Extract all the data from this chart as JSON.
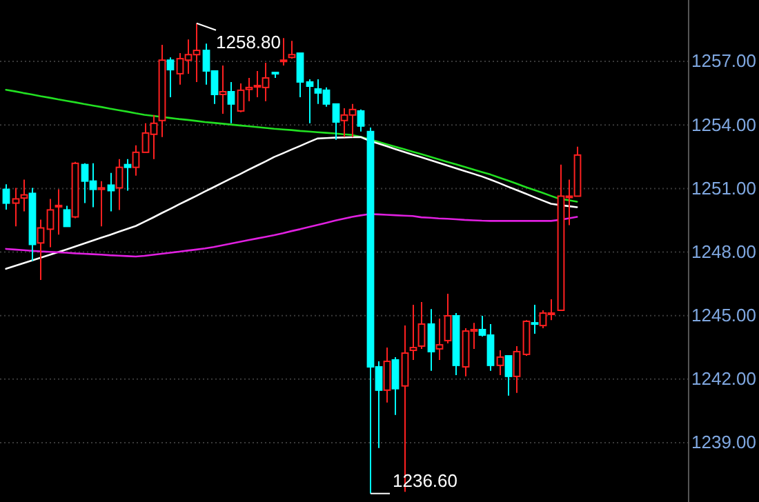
{
  "chart_data": {
    "type": "candlestick",
    "categories": [
      null,
      null,
      null,
      null,
      null,
      null,
      null,
      null,
      null,
      null,
      null,
      null,
      null,
      null,
      null,
      null,
      null,
      null,
      null,
      null,
      null,
      null,
      null,
      null,
      null,
      null,
      null,
      null,
      null,
      null,
      null,
      null,
      null,
      null,
      null,
      null,
      null,
      null,
      null,
      null,
      null,
      null,
      null,
      null,
      null,
      null,
      null,
      null,
      null,
      null,
      null,
      null,
      null,
      null,
      null,
      null,
      null,
      null,
      null,
      null,
      null,
      null,
      null,
      null,
      null,
      null,
      null
    ],
    "ohlc": [
      [
        1250.96,
        1251.2,
        1250.0,
        1250.31
      ],
      [
        1250.31,
        1251.03,
        1249.21,
        1250.51
      ],
      [
        1250.55,
        1251.42,
        1249.92,
        1250.7
      ],
      [
        1250.77,
        1251.03,
        1247.58,
        1248.36
      ],
      [
        1248.43,
        1249.53,
        1246.68,
        1249.14
      ],
      [
        1249.08,
        1250.51,
        1248.23,
        1249.99
      ],
      [
        1250.14,
        1250.96,
        1248.82,
        1250.2
      ],
      [
        1249.99,
        1250.18,
        1249.21,
        1249.21
      ],
      [
        1249.66,
        1252.26,
        1249.6,
        1252.19
      ],
      [
        1252.13,
        1252.19,
        1250.31,
        1251.35
      ],
      [
        1251.35,
        1252.19,
        1250.12,
        1250.96
      ],
      [
        1250.96,
        1251.35,
        1249.21,
        1251.03
      ],
      [
        1251.16,
        1251.74,
        1249.92,
        1250.9
      ],
      [
        1251.03,
        1252.39,
        1249.99,
        1252.0
      ],
      [
        1252.13,
        1252.39,
        1250.9,
        1252.0
      ],
      [
        1252.0,
        1253.04,
        1251.61,
        1252.71
      ],
      [
        1252.71,
        1254.08,
        1252.71,
        1253.62
      ],
      [
        1253.56,
        1254.47,
        1252.39,
        1254.08
      ],
      [
        1254.21,
        1257.78,
        1253.43,
        1257.06
      ],
      [
        1257.06,
        1257.19,
        1255.31,
        1256.61
      ],
      [
        1256.42,
        1257.39,
        1255.9,
        1257.13
      ],
      [
        1257.06,
        1258.04,
        1256.42,
        1257.32
      ],
      [
        1257.32,
        1258.8,
        1256.03,
        1257.52
      ],
      [
        1257.52,
        1257.84,
        1255.9,
        1256.55
      ],
      [
        1256.55,
        1256.55,
        1254.99,
        1255.44
      ],
      [
        1255.44,
        1256.81,
        1254.53,
        1255.57
      ],
      [
        1255.57,
        1256.03,
        1254.08,
        1254.99
      ],
      [
        1254.66,
        1255.96,
        1254.6,
        1255.64
      ],
      [
        1255.68,
        1256.22,
        1255.12,
        1255.77
      ],
      [
        1255.8,
        1256.55,
        1255.31,
        1255.86
      ],
      [
        1255.77,
        1256.94,
        1255.12,
        1256.22
      ],
      [
        1256.48,
        1256.48,
        1256.22,
        1256.42
      ],
      [
        1257.0,
        1258.1,
        1256.81,
        1257.06
      ],
      [
        1257.19,
        1257.97,
        1257.13,
        1257.32
      ],
      [
        1257.39,
        1257.39,
        1255.31,
        1256.03
      ],
      [
        1256.03,
        1256.16,
        1254.08,
        1255.83
      ],
      [
        1255.7,
        1256.16,
        1254.99,
        1255.51
      ],
      [
        1255.64,
        1255.77,
        1254.86,
        1254.99
      ],
      [
        1254.99,
        1254.99,
        1253.3,
        1254.14
      ],
      [
        1254.21,
        1254.79,
        1253.43,
        1254.47
      ],
      [
        1254.47,
        1254.99,
        1253.43,
        1254.73
      ],
      [
        1254.66,
        1254.73,
        1253.69,
        1253.95
      ],
      [
        1253.69,
        1253.88,
        1236.6,
        1242.58
      ],
      [
        1242.58,
        1242.84,
        1238.75,
        1241.48
      ],
      [
        1241.48,
        1243.49,
        1240.9,
        1242.84
      ],
      [
        1242.91,
        1243.04,
        1240.31,
        1241.55
      ],
      [
        1241.68,
        1244.53,
        1236.68,
        1243.23
      ],
      [
        1243.36,
        1245.51,
        1242.91,
        1243.49
      ],
      [
        1243.56,
        1245.64,
        1243.43,
        1244.6
      ],
      [
        1244.6,
        1245.31,
        1242.39,
        1243.3
      ],
      [
        1243.43,
        1244.86,
        1242.91,
        1243.62
      ],
      [
        1243.82,
        1246.03,
        1243.69,
        1244.99
      ],
      [
        1244.99,
        1245.12,
        1242.19,
        1242.65
      ],
      [
        1242.58,
        1244.4,
        1242.13,
        1244.27
      ],
      [
        1244.27,
        1244.66,
        1243.43,
        1244.34
      ],
      [
        1244.34,
        1244.99,
        1244.01,
        1244.08
      ],
      [
        1244.08,
        1244.6,
        1242.39,
        1242.65
      ],
      [
        1242.65,
        1243.36,
        1242.19,
        1243.04
      ],
      [
        1243.1,
        1243.1,
        1241.22,
        1242.13
      ],
      [
        1242.13,
        1243.56,
        1241.35,
        1243.3
      ],
      [
        1243.17,
        1244.79,
        1243.1,
        1244.73
      ],
      [
        1244.66,
        1245.51,
        1244.14,
        1244.6
      ],
      [
        1244.53,
        1245.25,
        1244.4,
        1245.12
      ],
      [
        1245.09,
        1245.77,
        1244.79,
        1245.12
      ],
      [
        1245.25,
        1252.13,
        1245.25,
        1250.64
      ],
      [
        1250.6,
        1251.42,
        1249.27,
        1250.64
      ],
      [
        1250.64,
        1252.97,
        1250.64,
        1252.58
      ]
    ],
    "colors": [
      "#00ffff",
      "#ff2020",
      "#ff2020",
      "#00ffff",
      "#ff2020",
      "#ff2020",
      "#ff2020",
      "#00ffff",
      "#ff2020",
      "#00ffff",
      "#00ffff",
      "#ff2020",
      "#00ffff",
      "#ff2020",
      "#00ffff",
      "#ff2020",
      "#ff2020",
      "#ff2020",
      "#ff2020",
      "#00ffff",
      "#ff2020",
      "#ff2020",
      "#ff2020",
      "#00ffff",
      "#00ffff",
      "#ff2020",
      "#00ffff",
      "#ff2020",
      "#ff2020",
      "#ff2020",
      "#ff2020",
      "#00ffff",
      "#ff2020",
      "#ff2020",
      "#00ffff",
      "#00ffff",
      "#00ffff",
      "#00ffff",
      "#00ffff",
      "#ff2020",
      "#ff2020",
      "#00ffff",
      "#00ffff",
      "#00ffff",
      "#ff2020",
      "#00ffff",
      "#ff2020",
      "#ff2020",
      "#ff2020",
      "#00ffff",
      "#ff2020",
      "#ff2020",
      "#00ffff",
      "#ff2020",
      "#ff2020",
      "#00ffff",
      "#00ffff",
      "#ff2020",
      "#00ffff",
      "#ff2020",
      "#ff2020",
      "#00ffff",
      "#ff2020",
      "#ff2020",
      "#ff2020",
      "#ff2020",
      "#ff2020"
    ],
    "series": [
      {
        "type": "line",
        "color": "#22e022",
        "values": [
          1255.66,
          1255.59,
          1255.51,
          1255.44,
          1255.36,
          1255.29,
          1255.21,
          1255.14,
          1255.07,
          1254.99,
          1254.92,
          1254.85,
          1254.77,
          1254.7,
          1254.63,
          1254.55,
          1254.48,
          1254.43,
          1254.38,
          1254.33,
          1254.28,
          1254.24,
          1254.19,
          1254.14,
          1254.1,
          1254.06,
          1254.02,
          1253.98,
          1253.94,
          1253.9,
          1253.86,
          1253.82,
          1253.79,
          1253.76,
          1253.72,
          1253.69,
          1253.66,
          1253.63,
          1253.6,
          1253.56,
          1253.53,
          1253.44,
          1253.32,
          1253.21,
          1253.09,
          1252.97,
          1252.86,
          1252.74,
          1252.62,
          1252.5,
          1252.38,
          1252.26,
          1252.14,
          1252.02,
          1251.9,
          1251.78,
          1251.66,
          1251.52,
          1251.38,
          1251.23,
          1251.08,
          1250.94,
          1250.8,
          1250.65,
          1250.51,
          1250.45,
          1250.38
        ]
      },
      {
        "type": "line",
        "color": "#ffffff",
        "values": [
          1247.21,
          1247.34,
          1247.47,
          1247.6,
          1247.73,
          1247.86,
          1247.99,
          1248.12,
          1248.26,
          1248.4,
          1248.54,
          1248.68,
          1248.81,
          1248.95,
          1249.09,
          1249.23,
          1249.43,
          1249.63,
          1249.84,
          1250.04,
          1250.25,
          1250.45,
          1250.65,
          1250.86,
          1251.06,
          1251.27,
          1251.47,
          1251.67,
          1251.88,
          1252.08,
          1252.28,
          1252.49,
          1252.66,
          1252.84,
          1253.01,
          1253.19,
          1253.36,
          1253.38,
          1253.4,
          1253.41,
          1253.42,
          1253.43,
          1253.26,
          1253.13,
          1253.0,
          1252.86,
          1252.73,
          1252.6,
          1252.48,
          1252.35,
          1252.22,
          1252.09,
          1251.96,
          1251.83,
          1251.7,
          1251.57,
          1251.42,
          1251.26,
          1251.09,
          1250.93,
          1250.77,
          1250.6,
          1250.44,
          1250.28,
          1250.22,
          1250.17,
          1250.12
        ]
      },
      {
        "type": "line",
        "color": "#e020e0",
        "values": [
          1248.15,
          1248.12,
          1248.09,
          1248.06,
          1248.03,
          1248.01,
          1247.99,
          1247.97,
          1247.94,
          1247.92,
          1247.9,
          1247.88,
          1247.85,
          1247.83,
          1247.81,
          1247.79,
          1247.82,
          1247.87,
          1247.92,
          1247.97,
          1248.02,
          1248.07,
          1248.12,
          1248.17,
          1248.24,
          1248.32,
          1248.4,
          1248.48,
          1248.56,
          1248.64,
          1248.72,
          1248.8,
          1248.89,
          1248.99,
          1249.08,
          1249.18,
          1249.28,
          1249.38,
          1249.48,
          1249.57,
          1249.66,
          1249.73,
          1249.79,
          1249.78,
          1249.76,
          1249.74,
          1249.72,
          1249.7,
          1249.64,
          1249.62,
          1249.59,
          1249.57,
          1249.55,
          1249.52,
          1249.5,
          1249.48,
          1249.47,
          1249.47,
          1249.47,
          1249.47,
          1249.47,
          1249.47,
          1249.47,
          1249.47,
          1249.52,
          1249.59,
          1249.66
        ]
      }
    ],
    "ylim": [
      1236.2,
      1259.9
    ],
    "yticks": [
      {
        "value": 1239,
        "label": "1239.00"
      },
      {
        "value": 1242,
        "label": "1242.00"
      },
      {
        "value": 1245,
        "label": "1245.00"
      },
      {
        "value": 1248,
        "label": "1248.00"
      },
      {
        "value": 1251,
        "label": "1251.00"
      },
      {
        "value": 1254,
        "label": "1254.00"
      },
      {
        "value": 1257,
        "label": "1257.00"
      }
    ],
    "annotations": [
      "1258.80",
      "1236.60"
    ],
    "grid": "y",
    "tick_labels": "y",
    "marker": "none"
  }
}
